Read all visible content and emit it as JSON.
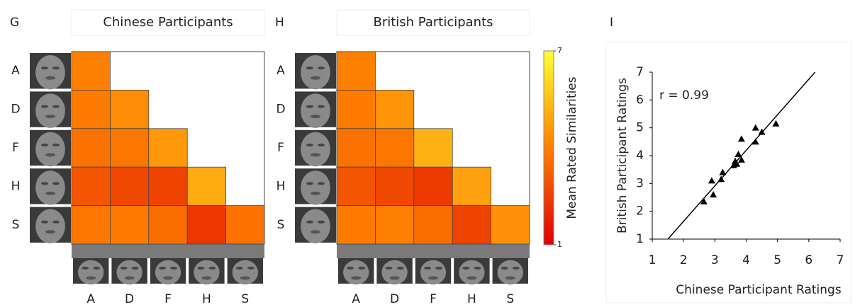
{
  "chart_data": [
    {
      "type": "heatmap",
      "panel": "G",
      "title": "Chinese Participants",
      "rows": [
        "A",
        "D",
        "F",
        "H",
        "S"
      ],
      "columns": [
        "A",
        "D",
        "F",
        "H",
        "S"
      ],
      "values": [
        [
          4.0,
          null,
          null,
          null,
          null
        ],
        [
          3.9,
          4.3,
          null,
          null,
          null
        ],
        [
          3.7,
          3.8,
          4.6,
          null,
          null
        ],
        [
          3.0,
          2.7,
          2.6,
          5.0,
          null
        ],
        [
          3.8,
          3.9,
          3.6,
          2.3,
          3.7
        ]
      ],
      "clim": [
        1,
        7
      ],
      "colormap": [
        "#dd0000",
        "#ff7f00",
        "#ffff33"
      ]
    },
    {
      "type": "heatmap",
      "panel": "H",
      "title": "British Participants",
      "rows": [
        "A",
        "D",
        "F",
        "H",
        "S"
      ],
      "columns": [
        "A",
        "D",
        "F",
        "H",
        "S"
      ],
      "values": [
        [
          4.0,
          null,
          null,
          null,
          null
        ],
        [
          3.9,
          4.5,
          null,
          null,
          null
        ],
        [
          3.7,
          3.8,
          5.2,
          null,
          null
        ],
        [
          3.0,
          2.7,
          2.4,
          4.8,
          null
        ],
        [
          3.9,
          4.0,
          3.6,
          2.6,
          4.4
        ]
      ],
      "clim": [
        1,
        7
      ],
      "colormap": [
        "#dd0000",
        "#ff7f00",
        "#ffff33"
      ],
      "colorbar": {
        "label": "Mean Rated Similarities",
        "ticks": [
          1,
          7
        ]
      }
    },
    {
      "type": "scatter",
      "panel": "I",
      "xlabel": "Chinese Participant Ratings",
      "ylabel": "British Participant Ratings",
      "annotation": "r = 0.99",
      "marker": "triangle",
      "color": "#000000",
      "x": [
        2.65,
        2.95,
        2.9,
        3.2,
        3.25,
        3.6,
        3.65,
        3.7,
        3.75,
        3.85,
        3.85,
        4.3,
        4.3,
        4.5,
        4.95
      ],
      "y": [
        2.35,
        2.6,
        3.1,
        3.15,
        3.4,
        3.65,
        3.8,
        3.7,
        4.05,
        3.85,
        4.6,
        4.5,
        5.0,
        4.85,
        5.15
      ],
      "fit_line": {
        "x": [
          1.5,
          6.2
        ],
        "y": [
          1,
          7
        ]
      },
      "xlim": [
        1,
        7
      ],
      "ylim": [
        1,
        7
      ],
      "xticks": [
        1,
        2,
        3,
        4,
        5,
        6,
        7
      ],
      "yticks": [
        1,
        2,
        3,
        4,
        5,
        6,
        7
      ]
    }
  ]
}
